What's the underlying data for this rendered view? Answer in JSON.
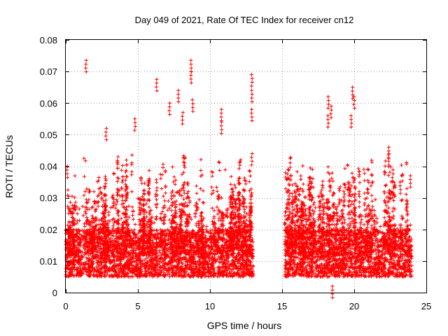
{
  "chart_data": {
    "type": "scatter",
    "title": "Day 049 of 2021, Rate Of TEC Index for receiver cn12",
    "xlabel": "GPS time / hours",
    "ylabel": "ROTI / TECUs",
    "xlim": [
      0,
      25
    ],
    "ylim": [
      0,
      0.08
    ],
    "x_ticks": [
      0,
      5,
      10,
      15,
      20,
      25
    ],
    "y_ticks": [
      0,
      0.01,
      0.02,
      0.03,
      0.04,
      0.05,
      0.06,
      0.07,
      0.08
    ],
    "x_tick_labels": [
      "0",
      "5",
      "10",
      "15",
      "20",
      "25"
    ],
    "y_tick_labels": [
      "0",
      "0.01",
      "0.02",
      "0.03",
      "0.04",
      "0.05",
      "0.06",
      "0.07",
      "0.08"
    ],
    "grid": true,
    "marker": "+",
    "color": "#ff0000",
    "series": [
      {
        "name": "ROTI",
        "segments": [
          {
            "x_range": [
              0.0,
              13.0
            ],
            "typical_range": [
              0.005,
              0.02
            ]
          },
          {
            "x_range": [
              15.2,
              24.0
            ],
            "typical_range": [
              0.005,
              0.02
            ]
          }
        ],
        "gap": [
          13.0,
          15.2
        ],
        "notable_points": [
          {
            "x": 1.4,
            "y": 0.0735
          },
          {
            "x": 0.1,
            "y": 0.04
          },
          {
            "x": 2.8,
            "y": 0.052
          },
          {
            "x": 3.6,
            "y": 0.043
          },
          {
            "x": 4.8,
            "y": 0.055
          },
          {
            "x": 6.3,
            "y": 0.0675
          },
          {
            "x": 7.2,
            "y": 0.06
          },
          {
            "x": 7.8,
            "y": 0.064
          },
          {
            "x": 8.1,
            "y": 0.057
          },
          {
            "x": 8.7,
            "y": 0.0735
          },
          {
            "x": 8.7,
            "y": 0.07
          },
          {
            "x": 8.8,
            "y": 0.061
          },
          {
            "x": 10.8,
            "y": 0.058
          },
          {
            "x": 10.8,
            "y": 0.054
          },
          {
            "x": 12.9,
            "y": 0.069
          },
          {
            "x": 12.9,
            "y": 0.064
          },
          {
            "x": 12.9,
            "y": 0.058
          },
          {
            "x": 12.9,
            "y": 0.044
          },
          {
            "x": 18.2,
            "y": 0.062
          },
          {
            "x": 18.4,
            "y": 0.059
          },
          {
            "x": 18.2,
            "y": 0.056
          },
          {
            "x": 19.9,
            "y": 0.065
          },
          {
            "x": 20.0,
            "y": 0.062
          },
          {
            "x": 19.8,
            "y": 0.056
          },
          {
            "x": 22.4,
            "y": 0.046
          },
          {
            "x": 22.4,
            "y": 0.044
          },
          {
            "x": 23.2,
            "y": 0.035
          },
          {
            "x": 23.9,
            "y": 0.037
          },
          {
            "x": 18.5,
            "y": 0.002
          }
        ]
      }
    ]
  }
}
